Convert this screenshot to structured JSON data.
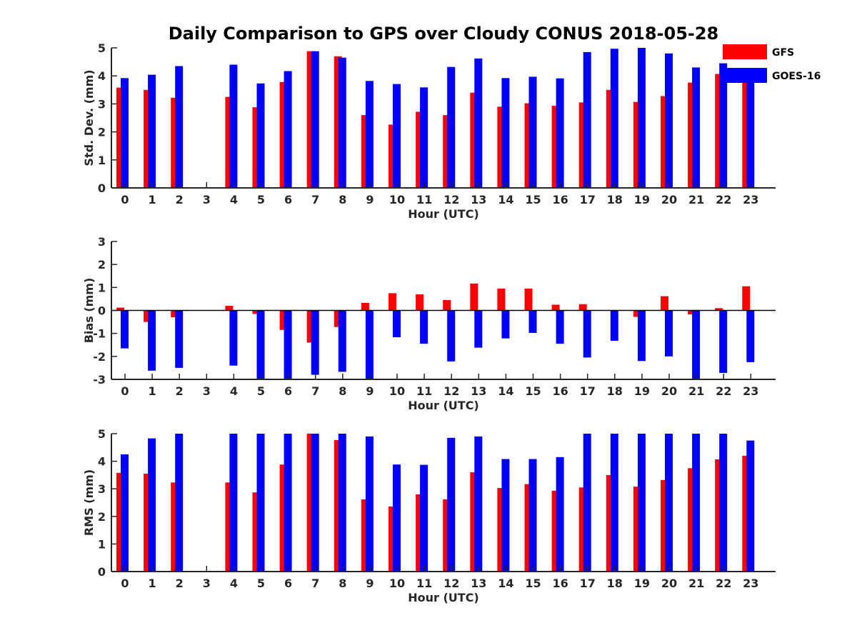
{
  "chart_data": {
    "type": "bar",
    "title": "Daily Comparison to GPS over Cloudy CONUS 2018-05-28",
    "legend": {
      "placement": "top-right",
      "entries": [
        {
          "name": "GFS",
          "color": "#ff0000"
        },
        {
          "name": "GOES-16",
          "color": "#0000ff"
        }
      ]
    },
    "categories": [
      "0",
      "1",
      "2",
      "3",
      "4",
      "5",
      "6",
      "7",
      "8",
      "9",
      "10",
      "11",
      "12",
      "13",
      "14",
      "15",
      "16",
      "17",
      "18",
      "19",
      "20",
      "21",
      "22",
      "23"
    ],
    "panels": [
      {
        "ylabel": "Std. Dev. (mm)",
        "xlabel": "Hour (UTC)",
        "ylim": [
          0,
          5
        ],
        "yticks": [
          "0",
          "1",
          "2",
          "3",
          "4",
          "5"
        ],
        "series": [
          {
            "name": "GFS",
            "values": [
              3.58,
              3.5,
              3.22,
              null,
              3.25,
              2.88,
              3.78,
              4.88,
              4.7,
              2.6,
              2.26,
              2.72,
              2.6,
              3.4,
              2.9,
              3.02,
              2.93,
              3.05,
              3.5,
              3.07,
              3.28,
              3.76,
              4.07,
              3.9
            ]
          },
          {
            "name": "GOES-16",
            "values": [
              3.92,
              4.04,
              4.35,
              null,
              4.4,
              3.73,
              4.17,
              4.88,
              4.65,
              3.82,
              3.71,
              3.59,
              4.32,
              4.62,
              3.92,
              3.97,
              3.91,
              4.85,
              4.97,
              5.0,
              4.8,
              4.3,
              4.45,
              4.0
            ]
          }
        ]
      },
      {
        "ylabel": "Bias (mm)",
        "xlabel": "Hour (UTC)",
        "ylim": [
          -3,
          3
        ],
        "yticks": [
          "-3",
          "-2",
          "-1",
          "0",
          "1",
          "2",
          "3"
        ],
        "series": [
          {
            "name": "GFS",
            "values": [
              0.12,
              -0.5,
              -0.3,
              null,
              0.2,
              -0.15,
              -0.85,
              -1.4,
              -0.72,
              0.33,
              0.75,
              0.7,
              0.45,
              1.17,
              0.95,
              0.95,
              0.25,
              0.27,
              0.0,
              -0.28,
              0.62,
              -0.17,
              0.1,
              1.05
            ]
          },
          {
            "name": "GOES-16",
            "values": [
              -1.65,
              -2.62,
              -2.5,
              null,
              -2.4,
              -3.0,
              -3.0,
              -2.8,
              -2.67,
              -3.0,
              -1.17,
              -1.45,
              -2.22,
              -1.62,
              -1.22,
              -0.98,
              -1.45,
              -2.05,
              -1.32,
              -2.2,
              -2.0,
              -3.0,
              -2.72,
              -2.25
            ]
          }
        ]
      },
      {
        "ylabel": "RMS (mm)",
        "xlabel": "Hour (UTC)",
        "ylim": [
          0,
          5
        ],
        "yticks": [
          "0",
          "1",
          "2",
          "3",
          "4",
          "5"
        ],
        "series": [
          {
            "name": "GFS",
            "values": [
              3.58,
              3.55,
              3.23,
              null,
              3.23,
              2.87,
              3.88,
              5.0,
              4.77,
              2.62,
              2.36,
              2.8,
              2.62,
              3.6,
              3.03,
              3.17,
              2.93,
              3.05,
              3.5,
              3.08,
              3.32,
              3.75,
              4.07,
              4.2
            ]
          },
          {
            "name": "GOES-16",
            "values": [
              4.25,
              4.83,
              5.0,
              null,
              5.0,
              5.0,
              5.0,
              5.0,
              5.0,
              4.9,
              3.88,
              3.87,
              4.85,
              4.9,
              4.08,
              4.08,
              4.15,
              5.0,
              5.0,
              5.0,
              5.0,
              5.0,
              5.0,
              4.75
            ]
          }
        ]
      }
    ]
  }
}
